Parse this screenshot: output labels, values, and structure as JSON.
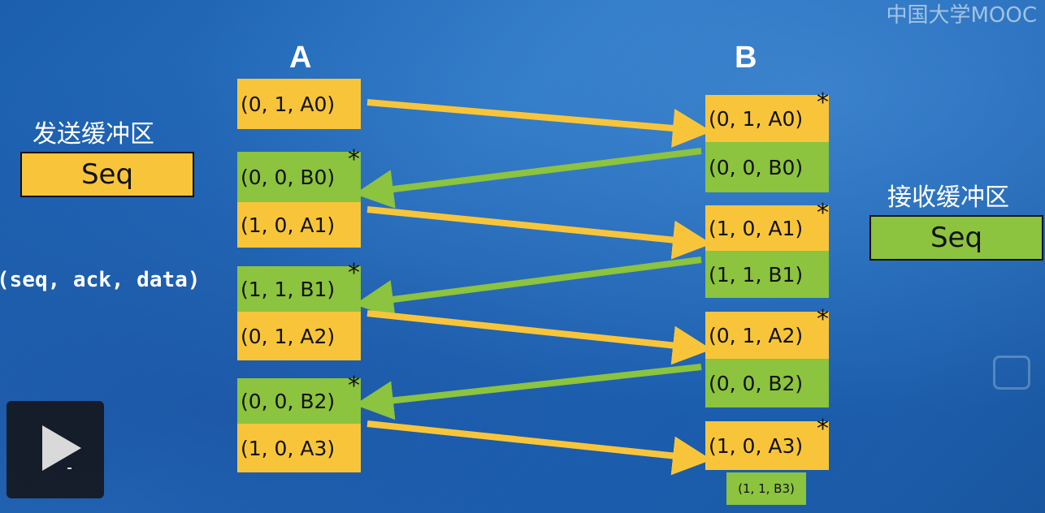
{
  "logo": "中国大学MOOC",
  "labels": {
    "host_a": "A",
    "host_b": "B",
    "send_buffer": "发送缓冲区",
    "recv_buffer": "接收缓冲区",
    "tuple_legend": "(seq, ack, data)",
    "send_seq": "Seq",
    "recv_seq": "Seq",
    "star": "*"
  },
  "colors": {
    "yellow": "#f8c53a",
    "green": "#8cc33f",
    "background": "#1f66b5"
  },
  "a_cells": [
    "(0, 1, A0)",
    "(0, 0, B0)",
    "(1, 0, A1)",
    "(1, 1, B1)",
    "(0, 1, A2)",
    "(0, 0, B2)",
    "(1, 0, A3)"
  ],
  "b_cells": [
    "(0, 1, A0)",
    "(0, 0, B0)",
    "(1, 0, A1)",
    "(1, 1, B1)",
    "(0, 1, A2)",
    "(0, 0, B2)",
    "(1, 0, A3)",
    "(1, 1, B3)"
  ],
  "icons": {
    "play": "play-icon",
    "side": "picture-in-picture-icon"
  }
}
